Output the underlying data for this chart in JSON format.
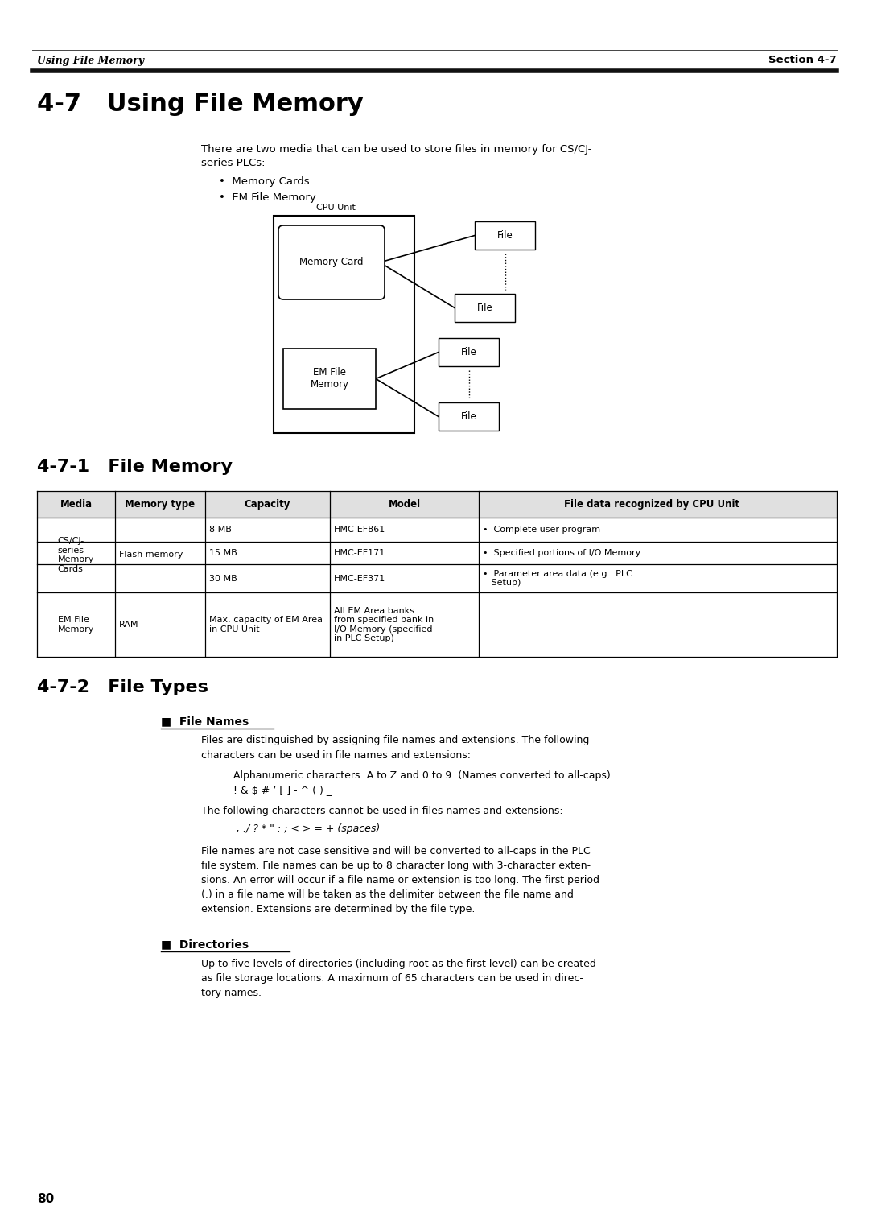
{
  "page_number": "80",
  "header_left": "Using File Memory",
  "header_right": "Section 4-7",
  "section_title": "4-7   Using File Memory",
  "intro_line1": "There are two media that can be used to store files in memory for CS/CJ-",
  "intro_line2": "series PLCs:",
  "bullet1": "•  Memory Cards",
  "bullet2": "•  EM File Memory",
  "diagram_cpu_label": "CPU Unit",
  "diagram_memory_card": "Memory Card",
  "diagram_em_memory": "EM File\nMemory",
  "subsection1_title": "4-7-1   File Memory",
  "table_headers": [
    "Media",
    "Memory type",
    "Capacity",
    "Model",
    "File data recognized by CPU Unit"
  ],
  "subsection2_title": "4-7-2   File Types",
  "file_names_header": "■  File Names",
  "fn_text1": "Files are distinguished by assigning file names and extensions. The following",
  "fn_text2": "characters can be used in file names and extensions:",
  "fn_text3": "Alphanumeric characters: A to Z and 0 to 9. (Names converted to all-caps)",
  "fn_text4": "! & $ # ’ [ ] - ^ ( ) _",
  "fn_text5": "The following characters cannot be used in files names and extensions:",
  "fn_text6": " , ./ ? * \" : ; < > = + (spaces)",
  "fn_text7a": "File names are not case sensitive and will be converted to all-caps in the PLC",
  "fn_text7b": "file system. File names can be up to 8 character long with 3-character exten-",
  "fn_text7c": "sions. An error will occur if a file name or extension is too long. The first period",
  "fn_text7d": "(.) in a file name will be taken as the delimiter between the file name and",
  "fn_text7e": "extension. Extensions are determined by the file type.",
  "dir_header": "■  Directories",
  "dir_text1": "Up to five levels of directories (including root as the first level) can be created",
  "dir_text2": "as file storage locations. A maximum of 65 characters can be used in direc-",
  "dir_text3": "tory names.",
  "bg_color": "#ffffff",
  "text_color": "#000000"
}
